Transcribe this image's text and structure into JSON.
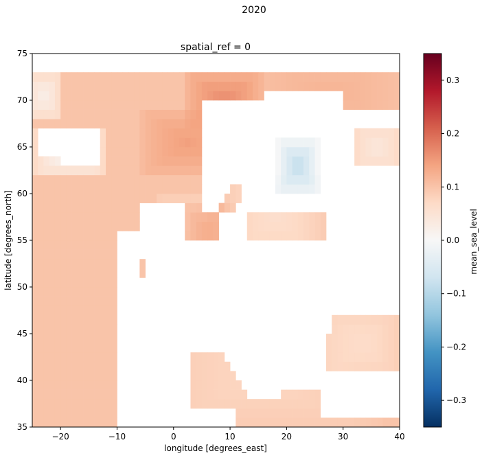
{
  "chart_data": {
    "type": "heatmap",
    "suptitle": "2020",
    "title": "spatial_ref = 0",
    "xlabel": "longitude [degrees_east]",
    "ylabel": "latitude [degrees_north]",
    "xlim": [
      -25,
      40
    ],
    "ylim": [
      35,
      75
    ],
    "x_ticks": [
      -20,
      -10,
      0,
      10,
      20,
      30,
      40
    ],
    "x_tick_labels": [
      "−20",
      "−10",
      "0",
      "10",
      "20",
      "30",
      "40"
    ],
    "y_ticks": [
      35,
      40,
      45,
      50,
      55,
      60,
      65,
      70,
      75
    ],
    "y_tick_labels": [
      "35",
      "40",
      "45",
      "50",
      "55",
      "60",
      "65",
      "70",
      "75"
    ],
    "grid_resolution_deg": 1,
    "colorbar": {
      "label": "mean_sea_level",
      "vmin": -0.35,
      "vmax": 0.35,
      "cmap": "RdBu_r",
      "ticks": [
        0.3,
        0.2,
        0.1,
        0.0,
        -0.1,
        -0.2,
        -0.3
      ],
      "tick_labels": [
        "0.3",
        "0.2",
        "0.1",
        "0.0",
        "−0.1",
        "−0.2",
        "−0.3"
      ]
    },
    "field_description": "mean sea level anomaly on a 1-degree grid; ocean values ~0.05-0.17, highest (~0.15-0.17) in the Norwegian Sea, near-zero patches off Iceland and west of Norway, negative values (~-0.05 to -0.12) in the Gulf of Bothnia; land cells are blank",
    "regions": [
      {
        "name": "atlantic_base",
        "lon": [
          -25,
          10
        ],
        "lat": [
          35,
          73
        ],
        "value": 0.1
      },
      {
        "name": "norwegian_sea_peak",
        "lon": [
          3,
          15
        ],
        "lat": [
          68,
          72
        ],
        "value": 0.165
      },
      {
        "name": "norwegian_sea_high",
        "lon": [
          -5,
          10
        ],
        "lat": [
          63,
          68
        ],
        "value": 0.145
      },
      {
        "name": "near_iceland_low",
        "lon": [
          -24,
          -13
        ],
        "lat": [
          63,
          66
        ],
        "value": 0.005
      },
      {
        "name": "northwest_low",
        "lon": [
          -25,
          -21
        ],
        "lat": [
          69,
          72
        ],
        "value": 0.02
      },
      {
        "name": "north_sea_mid",
        "lon": [
          -2,
          5
        ],
        "lat": [
          55,
          59
        ],
        "value": 0.07
      },
      {
        "name": "north_sea_east",
        "lon": [
          2,
          10
        ],
        "lat": [
          54,
          58
        ],
        "value": 0.13
      },
      {
        "name": "barents",
        "lon": [
          15,
          40
        ],
        "lat": [
          69,
          73
        ],
        "value": 0.12
      },
      {
        "name": "baltic",
        "lon": [
          10,
          26
        ],
        "lat": [
          54,
          61
        ],
        "value": 0.06
      },
      {
        "name": "gulf_of_bothnia",
        "lon": [
          18,
          26
        ],
        "lat": [
          60,
          66
        ],
        "value": -0.09
      },
      {
        "name": "mediterranean",
        "lon": [
          -6,
          36
        ],
        "lat": [
          35,
          46
        ],
        "value": 0.075
      },
      {
        "name": "black_sea",
        "lon": [
          27,
          40
        ],
        "lat": [
          41,
          47
        ],
        "value": 0.065
      },
      {
        "name": "white_sea",
        "lon": [
          32,
          40
        ],
        "lat": [
          63,
          67
        ],
        "value": 0.04
      }
    ]
  }
}
